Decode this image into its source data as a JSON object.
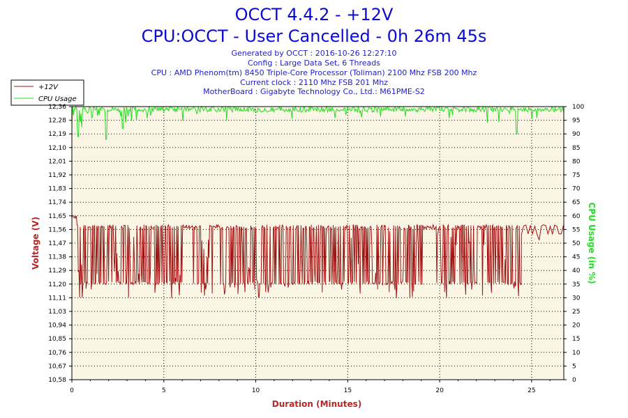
{
  "header": {
    "title": "OCCT 4.4.2 - +12V",
    "subtitle": "CPU:OCCT - User Cancelled - 0h 26m 45s",
    "info_lines": [
      "Generated by OCCT : 2016-10-26 12:27:10",
      "Config : Large Data Set, 6 Threads",
      "CPU : AMD Phenom(tm) 8450 Triple-Core Processor (Toliman) 2100 Mhz FSB 200 Mhz",
      "Current clock : 2110 Mhz FSB 201 Mhz",
      "MotherBoard : Gigabyte Technology Co., Ltd.: M61PME-S2"
    ]
  },
  "colors": {
    "title": "#0a0ad2",
    "info": "#1e1ec8",
    "voltage": "#a01414",
    "cpu": "#22dd22",
    "plot_bg": "#fbf5e6"
  },
  "chart_data": {
    "type": "line",
    "xlabel": "Duration (Minutes)",
    "ylabel": "Voltage (V)",
    "y2label": "CPU Usage (in %)",
    "xlim": [
      0,
      26.75
    ],
    "ylim": [
      10.58,
      12.36
    ],
    "y2lim": [
      0,
      100
    ],
    "x_ticks": [
      "0",
      "5",
      "10",
      "15",
      "20",
      "25"
    ],
    "y_ticks": [
      "10,58",
      "10,67",
      "10,76",
      "10,85",
      "10,94",
      "11,03",
      "11,11",
      "11,20",
      "11,29",
      "11,38",
      "11,47",
      "11,56",
      "11,65",
      "11,74",
      "11,83",
      "11,92",
      "12,01",
      "12,10",
      "12,19",
      "12,28",
      "12,36"
    ],
    "y2_ticks": [
      "0",
      "5",
      "10",
      "15",
      "20",
      "25",
      "30",
      "35",
      "40",
      "45",
      "50",
      "55",
      "60",
      "65",
      "70",
      "75",
      "80",
      "85",
      "90",
      "95",
      "100"
    ],
    "grid": true,
    "legend_position": "top-left",
    "series": [
      {
        "name": "+12V",
        "axis": "left",
        "color": "#a01414",
        "typical_high": 11.59,
        "typical_low": 11.2,
        "min": 11.11,
        "max": 11.65,
        "final_value": 11.53
      },
      {
        "name": "CPU Usage",
        "axis": "right",
        "color": "#22dd22",
        "typical": 99,
        "min": 88,
        "max": 100,
        "final_value": 98
      }
    ]
  }
}
